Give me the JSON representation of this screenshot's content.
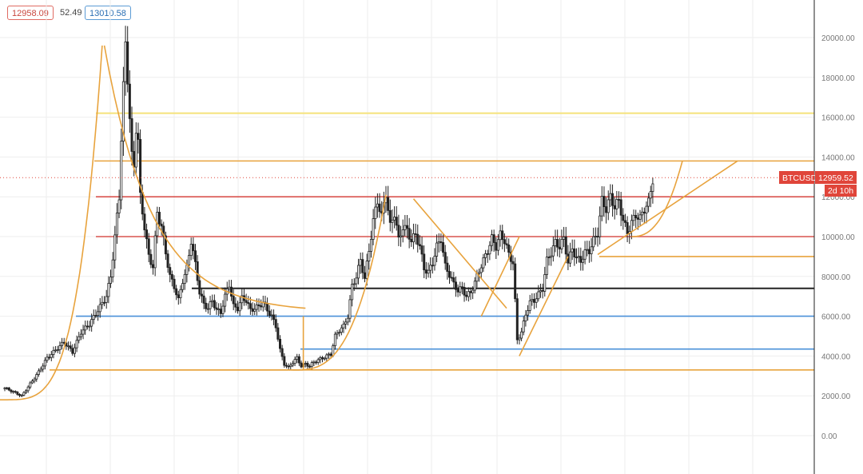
{
  "header": {
    "bid": "12958.09",
    "spread": "52.49",
    "ask": "13010.58"
  },
  "price_tag": {
    "symbol": "BTCUSD",
    "price": "12959.52",
    "countdown": "2d 10h"
  },
  "colors": {
    "bull_candle": "#ffffff",
    "bear_candle": "#222222",
    "curve_orange": "#e8a33d",
    "line_red": "#d9534f",
    "line_blue": "#4a90d9",
    "line_black": "#222222",
    "line_yellow": "#f5e27a",
    "tag_red": "#e0453a"
  },
  "chart_data": {
    "type": "candlestick",
    "title": "",
    "xlabel": "",
    "ylabel": "",
    "ylim": [
      -1500,
      22000
    ],
    "y_ticks": [
      "0.00",
      "2000.00",
      "4000.00",
      "6000.00",
      "8000.00",
      "10000.00",
      "12000.00",
      "14000.00",
      "16000.00",
      "18000.00",
      "20000.00"
    ],
    "grid": true,
    "series": [
      {
        "type": "candles",
        "close_path": [
          [
            0,
            2400
          ],
          [
            4,
            2200
          ],
          [
            8,
            2000
          ],
          [
            12,
            2600
          ],
          [
            16,
            3200
          ],
          [
            20,
            3900
          ],
          [
            24,
            4300
          ],
          [
            28,
            4700
          ],
          [
            32,
            4200
          ],
          [
            36,
            5200
          ],
          [
            40,
            5600
          ],
          [
            44,
            6300
          ],
          [
            48,
            7000
          ],
          [
            50,
            8000
          ],
          [
            52,
            10000
          ],
          [
            54,
            12000
          ],
          [
            55,
            15000
          ],
          [
            56,
            17500
          ],
          [
            57,
            19600
          ],
          [
            58,
            18000
          ],
          [
            59,
            16000
          ],
          [
            60,
            14000
          ],
          [
            61,
            13500
          ],
          [
            62,
            15500
          ],
          [
            63,
            14800
          ],
          [
            64,
            12000
          ],
          [
            66,
            10500
          ],
          [
            68,
            9000
          ],
          [
            70,
            8500
          ],
          [
            72,
            11200
          ],
          [
            74,
            10500
          ],
          [
            76,
            9200
          ],
          [
            78,
            8000
          ],
          [
            80,
            7500
          ],
          [
            82,
            6800
          ],
          [
            84,
            7800
          ],
          [
            86,
            8400
          ],
          [
            88,
            9800
          ],
          [
            90,
            8600
          ],
          [
            92,
            7200
          ],
          [
            94,
            6600
          ],
          [
            96,
            6400
          ],
          [
            98,
            6800
          ],
          [
            100,
            6300
          ],
          [
            102,
            6200
          ],
          [
            104,
            7000
          ],
          [
            106,
            7600
          ],
          [
            108,
            6500
          ],
          [
            110,
            6400
          ],
          [
            112,
            6900
          ],
          [
            114,
            6800
          ],
          [
            116,
            6300
          ],
          [
            118,
            6400
          ],
          [
            120,
            6500
          ],
          [
            122,
            6700
          ],
          [
            124,
            6300
          ],
          [
            126,
            6000
          ],
          [
            128,
            5500
          ],
          [
            130,
            4300
          ],
          [
            132,
            3600
          ],
          [
            134,
            3400
          ],
          [
            136,
            3700
          ],
          [
            138,
            3900
          ],
          [
            140,
            3500
          ],
          [
            142,
            3600
          ],
          [
            144,
            3500
          ],
          [
            146,
            3700
          ],
          [
            148,
            3800
          ],
          [
            150,
            3900
          ],
          [
            152,
            4000
          ],
          [
            154,
            4100
          ],
          [
            156,
            5000
          ],
          [
            158,
            5300
          ],
          [
            160,
            5500
          ],
          [
            162,
            6000
          ],
          [
            164,
            7500
          ],
          [
            166,
            8000
          ],
          [
            168,
            8800
          ],
          [
            170,
            7900
          ],
          [
            172,
            9300
          ],
          [
            174,
            10800
          ],
          [
            176,
            11800
          ],
          [
            178,
            11000
          ],
          [
            180,
            12200
          ],
          [
            182,
            10500
          ],
          [
            184,
            11200
          ],
          [
            186,
            9800
          ],
          [
            188,
            10500
          ],
          [
            190,
            10300
          ],
          [
            192,
            9800
          ],
          [
            194,
            10100
          ],
          [
            196,
            9500
          ],
          [
            198,
            8400
          ],
          [
            200,
            8200
          ],
          [
            202,
            8700
          ],
          [
            204,
            9500
          ],
          [
            206,
            9900
          ],
          [
            208,
            8500
          ],
          [
            210,
            8100
          ],
          [
            212,
            7600
          ],
          [
            214,
            7300
          ],
          [
            216,
            7400
          ],
          [
            218,
            7000
          ],
          [
            220,
            7200
          ],
          [
            222,
            7700
          ],
          [
            224,
            8300
          ],
          [
            226,
            8800
          ],
          [
            228,
            9300
          ],
          [
            230,
            9900
          ],
          [
            232,
            9500
          ],
          [
            234,
            10100
          ],
          [
            236,
            9800
          ],
          [
            238,
            9100
          ],
          [
            240,
            8700
          ],
          [
            242,
            4800
          ],
          [
            244,
            5200
          ],
          [
            246,
            6100
          ],
          [
            248,
            6700
          ],
          [
            250,
            6800
          ],
          [
            252,
            7100
          ],
          [
            254,
            7400
          ],
          [
            256,
            8800
          ],
          [
            258,
            9200
          ],
          [
            260,
            9700
          ],
          [
            262,
            9500
          ],
          [
            264,
            9900
          ],
          [
            266,
            8700
          ],
          [
            268,
            9400
          ],
          [
            270,
            8900
          ],
          [
            272,
            8800
          ],
          [
            274,
            9200
          ],
          [
            276,
            9300
          ],
          [
            278,
            9800
          ],
          [
            280,
            10200
          ],
          [
            282,
            11800
          ],
          [
            284,
            11400
          ],
          [
            286,
            12000
          ],
          [
            288,
            11500
          ],
          [
            290,
            11800
          ],
          [
            292,
            10800
          ],
          [
            294,
            10200
          ],
          [
            296,
            10700
          ],
          [
            298,
            11100
          ],
          [
            300,
            10900
          ],
          [
            302,
            11400
          ],
          [
            304,
            11700
          ],
          [
            306,
            12900
          ]
        ]
      },
      {
        "type": "hline",
        "label": "16200 level",
        "value": 16200,
        "color_key": "line_yellow"
      },
      {
        "type": "hline",
        "label": "13800 level",
        "value": 13800,
        "color_key": "curve_orange"
      },
      {
        "type": "hline",
        "label": "12000 level",
        "value": 12000,
        "color_key": "line_red"
      },
      {
        "type": "hline",
        "label": "10000 level",
        "value": 10000,
        "color_key": "line_red"
      },
      {
        "type": "hline",
        "label": "9000 level",
        "value": 9000,
        "color_key": "curve_orange"
      },
      {
        "type": "hline",
        "label": "7400 level",
        "value": 7400,
        "color_key": "line_black"
      },
      {
        "type": "hline",
        "label": "6000 level",
        "value": 6000,
        "color_key": "line_blue"
      },
      {
        "type": "hline",
        "label": "4350 level",
        "value": 4350,
        "color_key": "line_blue"
      },
      {
        "type": "hline",
        "label": "3300 level",
        "value": 3300,
        "color_key": "curve_orange"
      }
    ]
  }
}
